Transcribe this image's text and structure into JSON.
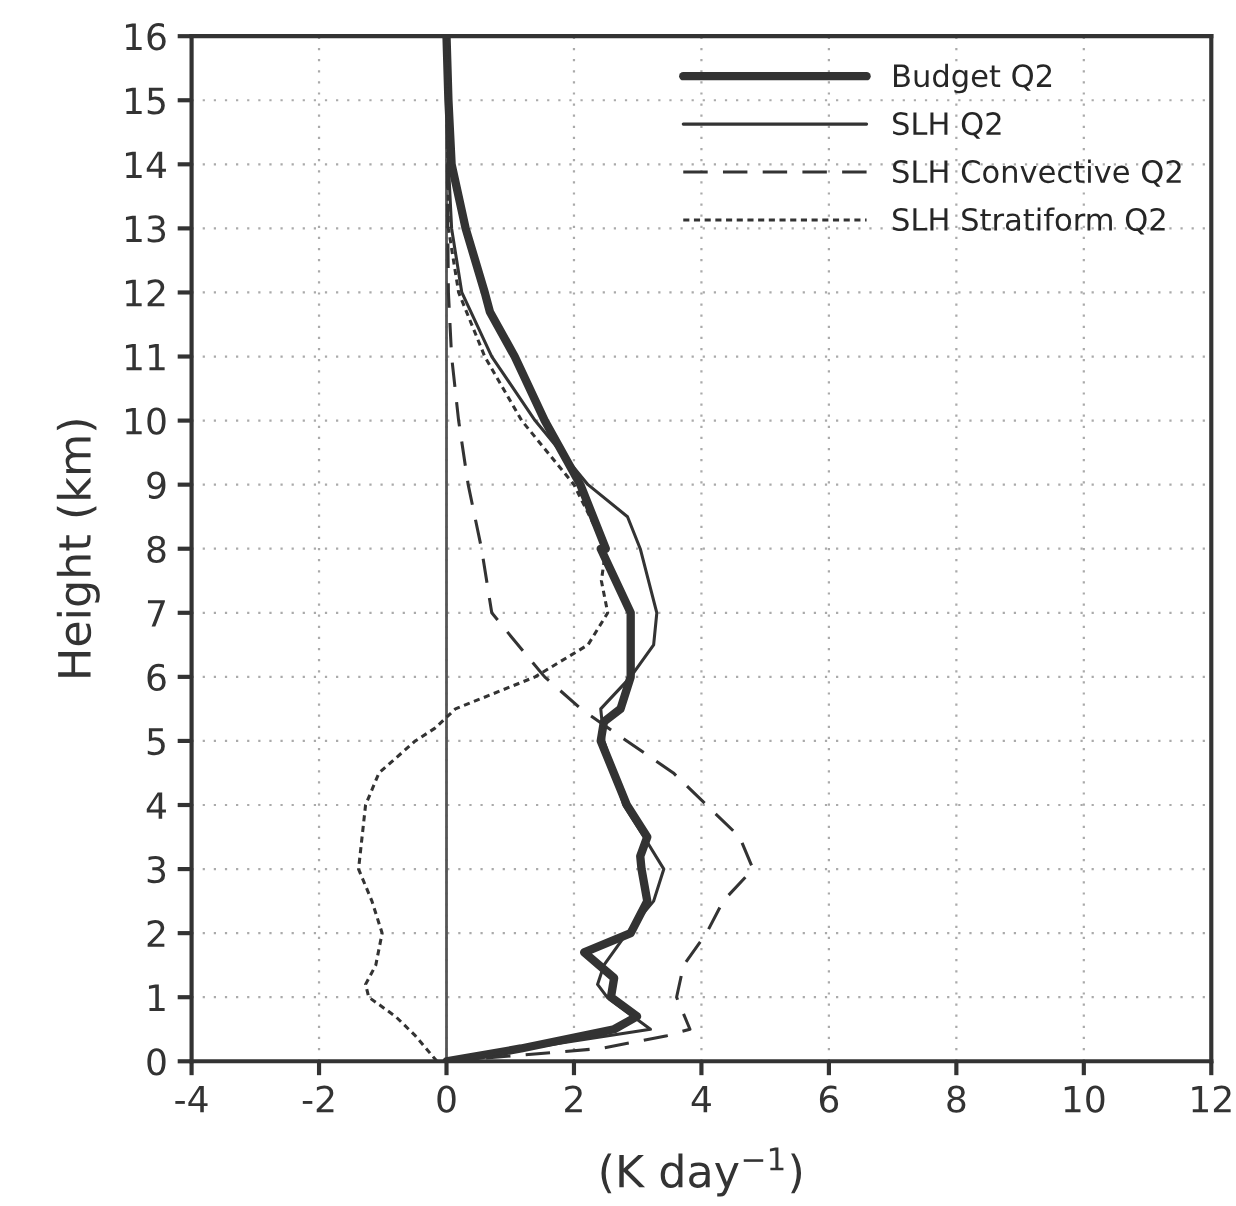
{
  "chart_data": {
    "type": "line",
    "xlabel": "(K day$^{−1}$)",
    "ylabel": "Height (km)",
    "xlim": [
      -4,
      12
    ],
    "xticks": [
      -4,
      -2,
      0,
      2,
      4,
      6,
      8,
      10,
      12
    ],
    "ylim": [
      0,
      16
    ],
    "yticks": [
      0,
      1,
      2,
      3,
      4,
      5,
      6,
      7,
      8,
      9,
      10,
      11,
      12,
      13,
      14,
      15,
      16
    ],
    "grid": true,
    "legend": "top right",
    "marker": "none",
    "ref_lines": [
      {
        "axis": "x",
        "value": 0,
        "color": "#555555",
        "line_style": "solid"
      }
    ],
    "series": [
      {
        "name": "Budget Q2",
        "color": "#333333",
        "line_style": "solid",
        "x": [
          0,
          1.17,
          2.63,
          2.99,
          2.58,
          2.63,
          2.16,
          2.89,
          3.15,
          3.06,
          3.04,
          3.15,
          2.83,
          2.42,
          2.47,
          2.73,
          2.89,
          2.89,
          2.42,
          2.5,
          2.1,
          1.54,
          1.07,
          0.68,
          0.6,
          0.3,
          0.08,
          0.03,
          0
        ],
        "values": [
          0,
          0.2,
          0.5,
          0.7,
          1,
          1.3,
          1.7,
          2,
          2.5,
          3,
          3.2,
          3.5,
          4,
          5,
          5.3,
          5.5,
          6,
          7,
          8,
          8,
          9,
          10,
          11,
          11.7,
          12,
          13,
          14,
          15,
          16
        ]
      },
      {
        "name": "SLH Q2",
        "color": "#333333",
        "line_style": "solid",
        "x": [
          0,
          1.9,
          3.2,
          2.52,
          2.37,
          2.47,
          2.83,
          3.25,
          3.41,
          3.1,
          2.78,
          2.63,
          2.47,
          2.42,
          2.89,
          3.25,
          3.3,
          3.04,
          2.84,
          2.22,
          1.39,
          0.71,
          0.24,
          0.08,
          0.03,
          0
        ],
        "values": [
          0,
          0.3,
          0.5,
          1,
          1.2,
          1.5,
          2,
          2.5,
          3,
          3.5,
          4,
          4.5,
          5,
          5.5,
          6,
          6.5,
          7,
          8,
          8.5,
          9,
          10,
          11,
          12,
          13,
          14,
          16
        ]
      },
      {
        "name": "SLH Convective Q2",
        "color": "#333333",
        "line_style": "dashed",
        "x": [
          0,
          2.42,
          3.46,
          3.82,
          3.61,
          3.72,
          4.08,
          4.34,
          4.81,
          4.6,
          4.08,
          3.56,
          2.83,
          2.11,
          1.54,
          1.12,
          0.71,
          0.55,
          0.34,
          0.19,
          0.08,
          0.03,
          0.02,
          0
        ],
        "values": [
          0,
          0.2,
          0.4,
          0.5,
          1,
          1.5,
          2,
          2.5,
          3,
          3.5,
          4,
          4.5,
          5,
          5.5,
          6,
          6.5,
          7,
          8,
          9,
          10,
          11,
          12,
          13,
          16
        ]
      },
      {
        "name": "SLH Stratiform Q2",
        "color": "#333333",
        "line_style": "dotted",
        "x": [
          -0.15,
          -0.49,
          -0.8,
          -1.22,
          -1.27,
          -1.11,
          -1.01,
          -1.17,
          -1.38,
          -1.27,
          -1.06,
          -0.49,
          -0.18,
          0.14,
          1.39,
          2.22,
          2.53,
          2.43,
          2.5,
          2.0,
          1.18,
          0.6,
          0.19,
          0.03,
          0
        ],
        "values": [
          0,
          0.4,
          0.7,
          1,
          1.2,
          1.5,
          2,
          2.5,
          3,
          4,
          4.5,
          5,
          5.2,
          5.5,
          6,
          6.5,
          7,
          7.5,
          8,
          9,
          10,
          11,
          12,
          13,
          16
        ]
      }
    ]
  }
}
